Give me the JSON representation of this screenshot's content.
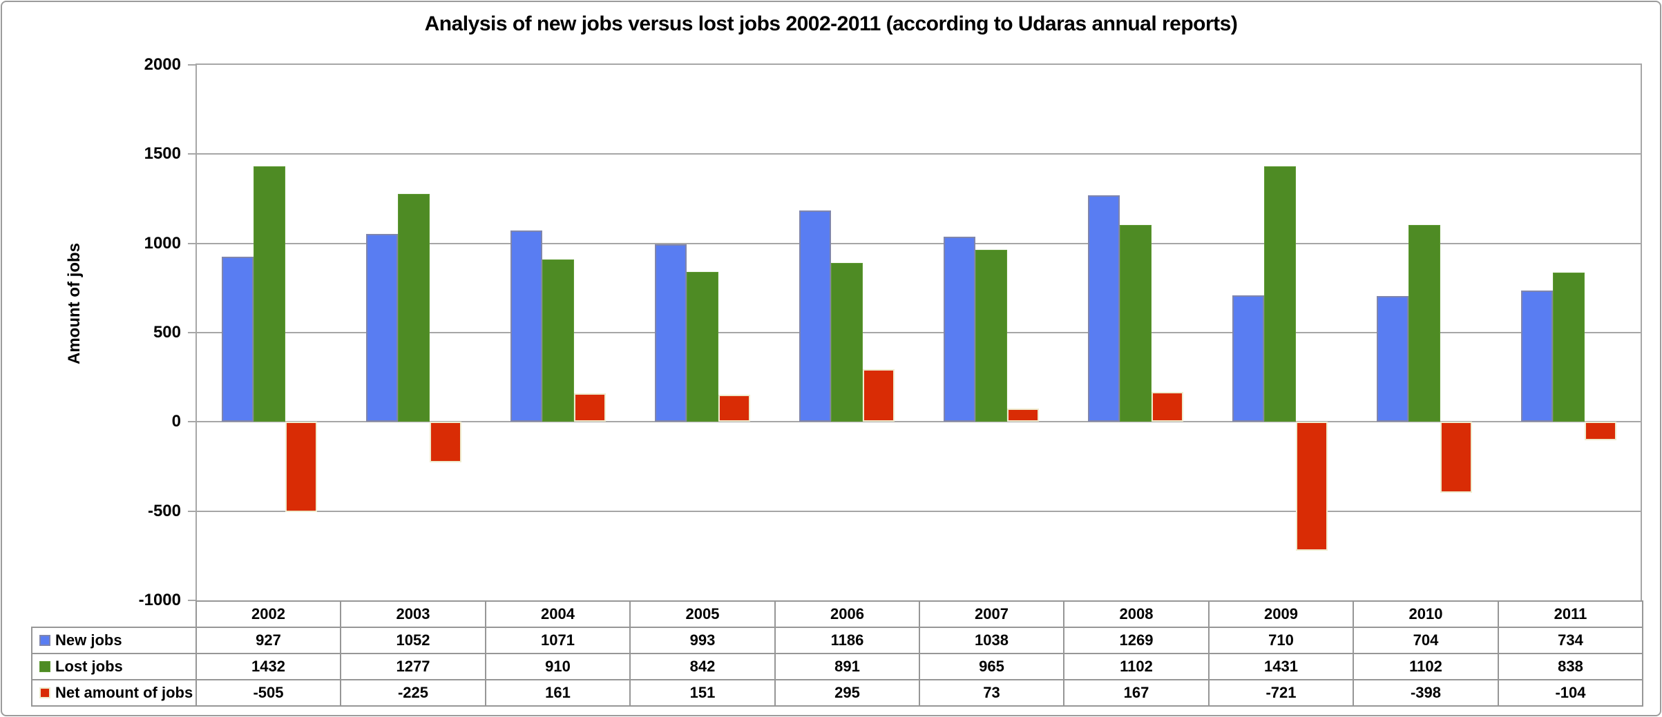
{
  "title": "Analysis of new jobs versus lost jobs 2002-2011 (according to Udaras annual reports)",
  "y_axis": {
    "title": "Amount of jobs",
    "tick_labels": [
      "2000",
      "1500",
      "1000",
      "500",
      "0",
      "-500",
      "-1000"
    ]
  },
  "chart_data": {
    "type": "bar",
    "title": "Analysis of new jobs versus lost jobs 2002-2011 (according to Udaras annual reports)",
    "xlabel": "",
    "ylabel": "Amount of jobs",
    "ylim": [
      -1000,
      2000
    ],
    "ytick_step": 500,
    "grid": true,
    "legend_position": "table-left",
    "categories": [
      "2002",
      "2003",
      "2004",
      "2005",
      "2006",
      "2007",
      "2008",
      "2009",
      "2010",
      "2011"
    ],
    "series": [
      {
        "name": "New jobs",
        "color": "#597df2",
        "border_color": "#7f85ad",
        "border_px": 2,
        "values": [
          927,
          1052,
          1071,
          993,
          1186,
          1038,
          1269,
          710,
          704,
          734
        ]
      },
      {
        "name": "Lost jobs",
        "color": "#4e8b24",
        "border_color": "#5f9a33",
        "border_px": 1,
        "values": [
          1432,
          1277,
          910,
          842,
          891,
          965,
          1102,
          1431,
          1102,
          838
        ]
      },
      {
        "name": "Net amount of jobs",
        "color": "#d92c05",
        "border_color": "#efecce",
        "border_px": 2,
        "values": [
          -505,
          -225,
          161,
          151,
          295,
          73,
          167,
          -721,
          -398,
          -104
        ]
      }
    ]
  },
  "colors": {
    "gridline": "#a6a6a6",
    "plot_border": "#a6a6a6",
    "table_border": "#969696",
    "frame_border": "#9b9b9b",
    "text": "#000000",
    "background": "#ffffff"
  }
}
